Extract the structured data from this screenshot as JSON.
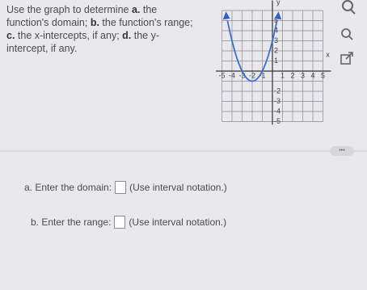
{
  "question": {
    "segments": [
      "Use the graph to determine ",
      "a.",
      " the function's domain; ",
      "b.",
      " the function's range; ",
      "c.",
      " the x-intercepts, if any; ",
      "d.",
      " the y-intercept, if any."
    ]
  },
  "graph": {
    "x_label": "x",
    "y_label": "y",
    "x_tick_labels": [
      "-5",
      "-4",
      "-3",
      "-2",
      "-1",
      "1",
      "2",
      "3",
      "4",
      "5"
    ],
    "y_tick_labels": [
      "5",
      "4",
      "3",
      "2",
      "1",
      "-2",
      "-3",
      "-4",
      "-5"
    ]
  },
  "more_button": "•••",
  "parts": [
    {
      "label": "a. Enter the domain:",
      "hint": "(Use interval notation.)"
    },
    {
      "label": "b. Enter the range:",
      "hint": "(Use interval notation.)"
    }
  ]
}
